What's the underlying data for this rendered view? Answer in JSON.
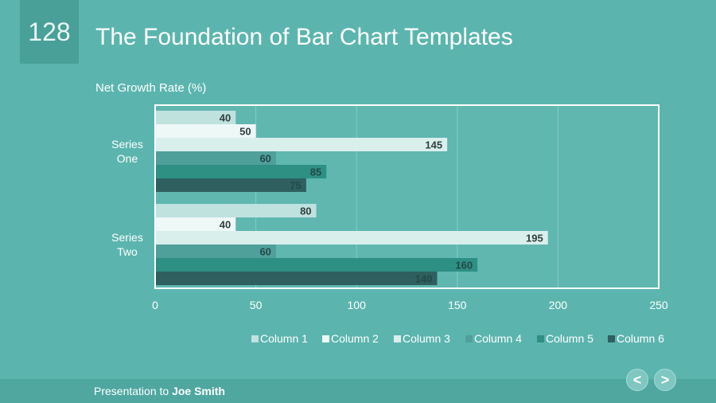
{
  "slide": {
    "number": "128",
    "title": "The Foundation of Bar Chart Templates"
  },
  "footer": {
    "prefix": "Presentation to ",
    "name": "Joe Smith"
  },
  "nav": {
    "prev": "<",
    "next": ">"
  },
  "colors": {
    "background": "#5bb5ae",
    "columns": [
      "#bfe2df",
      "#eef8f7",
      "#d9efec",
      "#4f9f9a",
      "#2e8f83",
      "#2f5f5f"
    ]
  },
  "chart_data": {
    "type": "bar",
    "orientation": "horizontal",
    "title": "Net Growth Rate (%)",
    "categories": [
      "Series One",
      "Series Two"
    ],
    "series": [
      {
        "name": "Column 1",
        "values": [
          40,
          80
        ]
      },
      {
        "name": "Column 2",
        "values": [
          50,
          40
        ]
      },
      {
        "name": "Column 3",
        "values": [
          145,
          195
        ]
      },
      {
        "name": "Column 4",
        "values": [
          60,
          60
        ]
      },
      {
        "name": "Column 5",
        "values": [
          85,
          160
        ]
      },
      {
        "name": "Column 6",
        "values": [
          75,
          140
        ]
      }
    ],
    "xlim": [
      0,
      250
    ],
    "xticks": [
      "0",
      "50",
      "100",
      "150",
      "200",
      "250"
    ],
    "grid": true,
    "legend": "bottom"
  }
}
